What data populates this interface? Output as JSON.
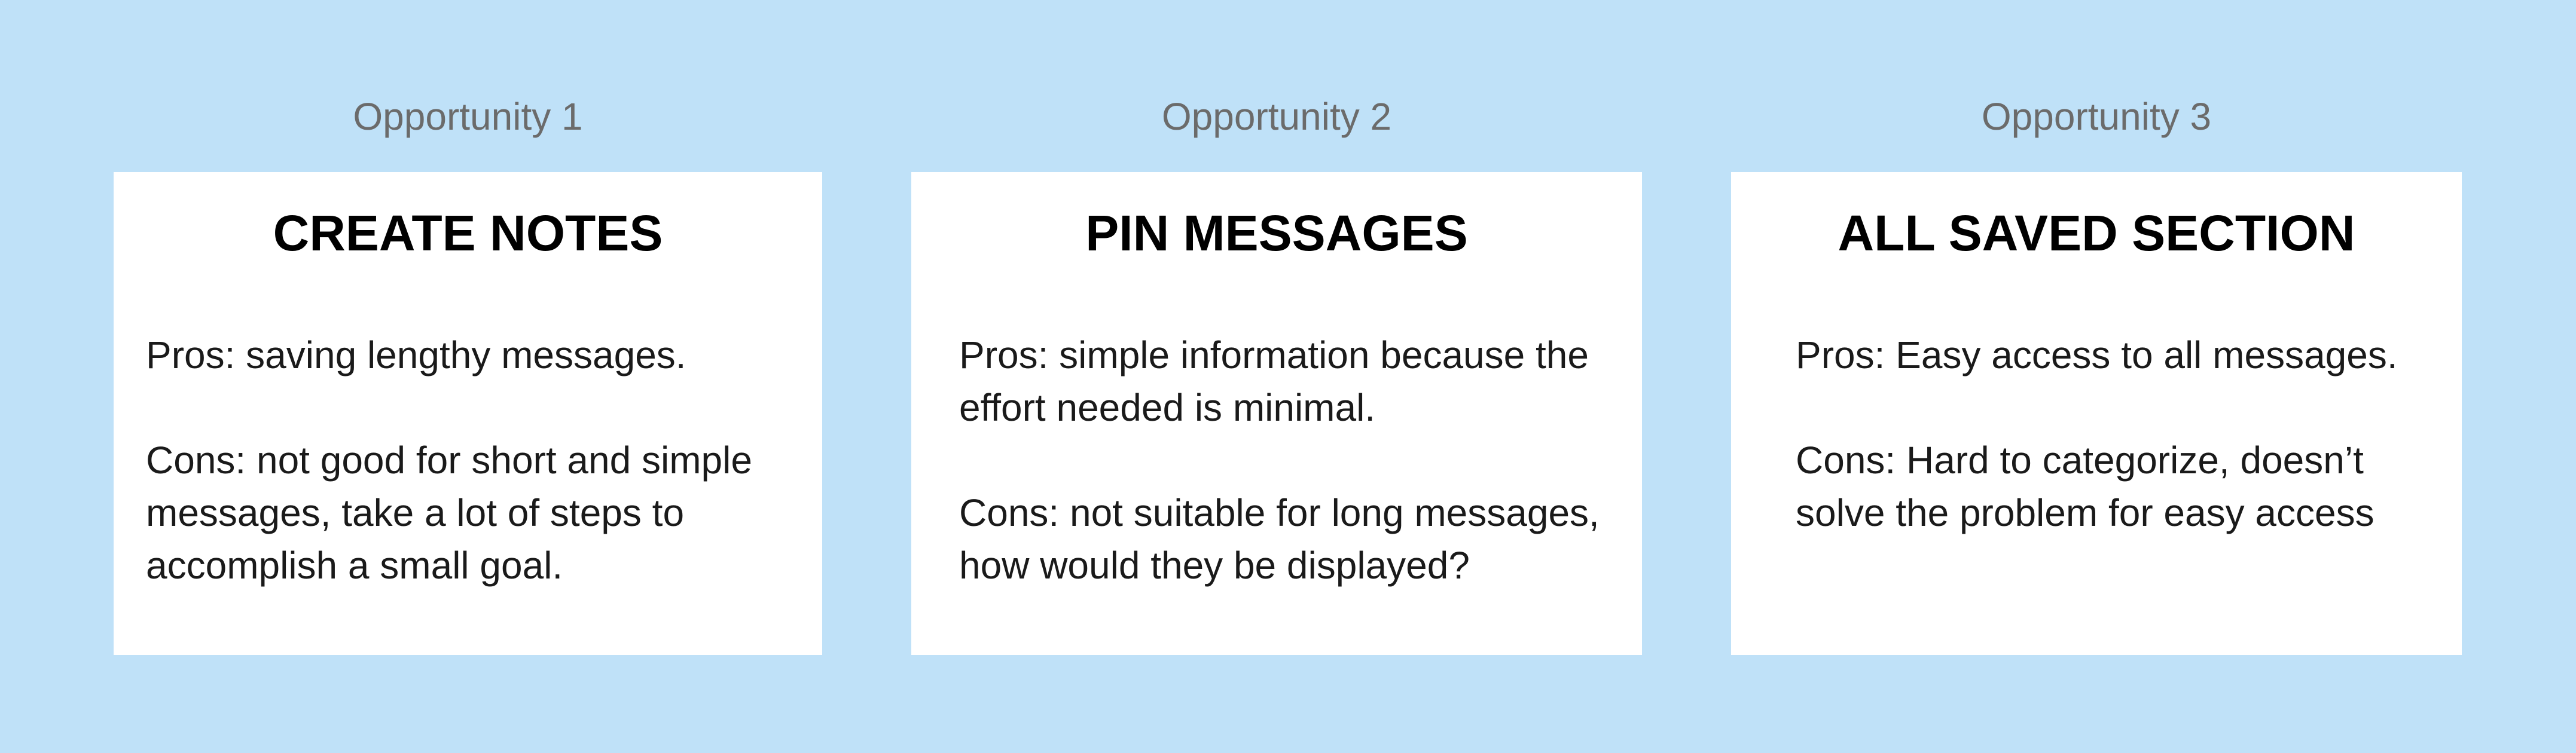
{
  "background_color": "#bfe1f8",
  "opportunities": [
    {
      "label": "Opportunity 1",
      "title": "CREATE NOTES",
      "pros": "Pros: saving lengthy messages.",
      "cons": "Cons: not good for short and simple messages, take a lot of steps to accomplish a small goal."
    },
    {
      "label": "Opportunity 2",
      "title": "PIN MESSAGES",
      "pros": "Pros: simple information because the effort needed is minimal.",
      "cons": "Cons: not suitable for long messages, how would they be displayed?"
    },
    {
      "label": "Opportunity 3",
      "title": "ALL SAVED SECTION",
      "pros": "Pros: Easy access to all messages.",
      "cons": "Cons: Hard to categorize, doesn’t solve the problem for easy access"
    }
  ]
}
